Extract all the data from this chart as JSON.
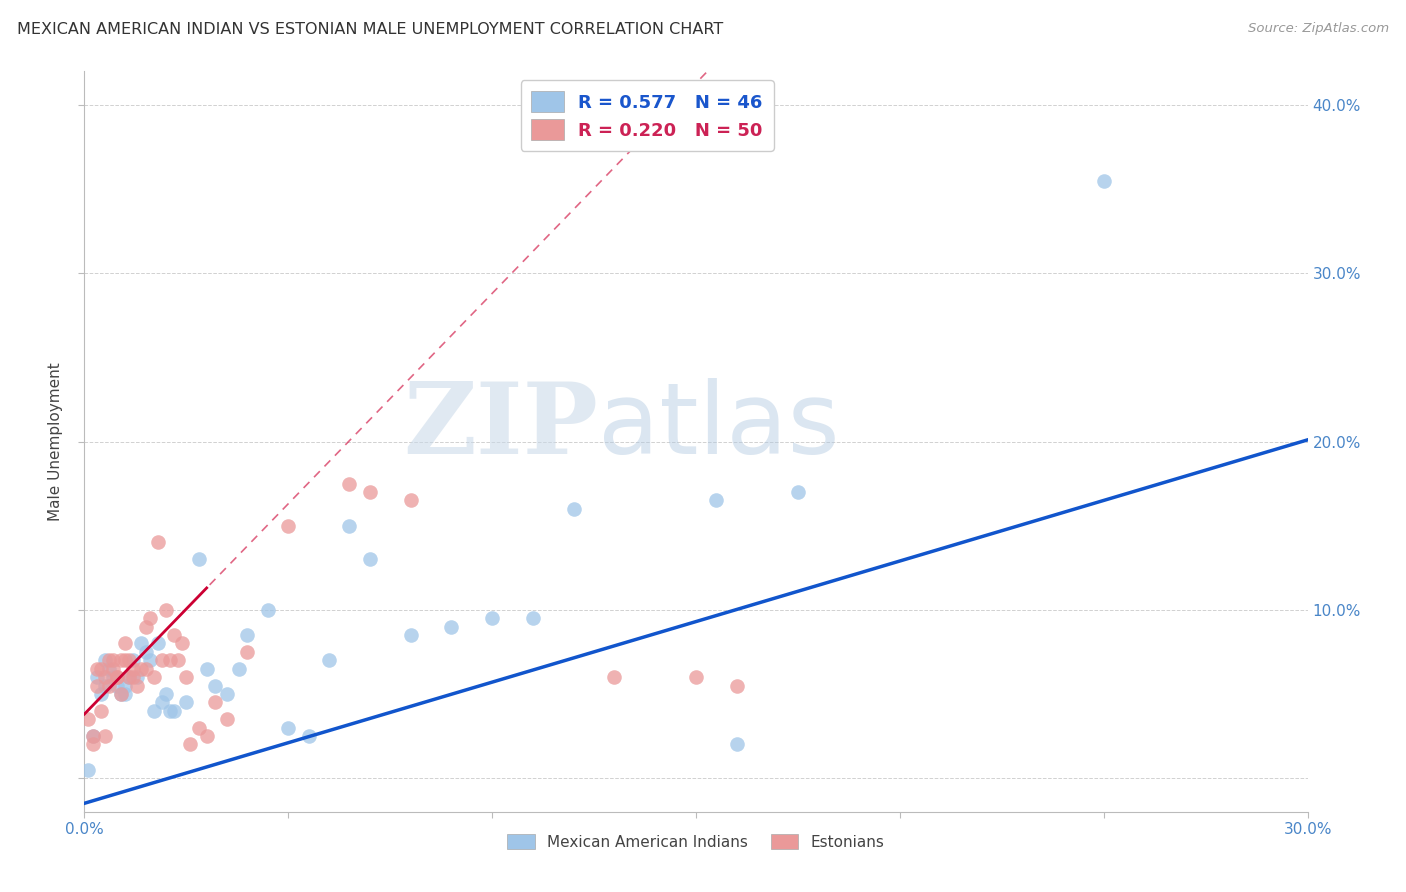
{
  "title": "MEXICAN AMERICAN INDIAN VS ESTONIAN MALE UNEMPLOYMENT CORRELATION CHART",
  "source": "Source: ZipAtlas.com",
  "ylabel": "Male Unemployment",
  "xlim": [
    0.0,
    0.3
  ],
  "ylim": [
    -0.02,
    0.42
  ],
  "xticks": [
    0.0,
    0.05,
    0.1,
    0.15,
    0.2,
    0.25,
    0.3
  ],
  "yticks": [
    0.0,
    0.1,
    0.2,
    0.3,
    0.4
  ],
  "ytick_labels": [
    "",
    "10.0%",
    "20.0%",
    "30.0%",
    "40.0%"
  ],
  "blue_color": "#9fc5e8",
  "pink_color": "#ea9999",
  "blue_line_color": "#1155cc",
  "pink_line_color": "#cc0033",
  "pink_dash_color": "#cc0033",
  "watermark_zip": "ZIP",
  "watermark_atlas": "atlas",
  "legend_blue_label": "R = 0.577   N = 46",
  "legend_pink_label": "R = 0.220   N = 50",
  "legend_bottom_blue": "Mexican American Indians",
  "legend_bottom_pink": "Estonians",
  "blue_x": [
    0.001,
    0.002,
    0.003,
    0.004,
    0.005,
    0.005,
    0.006,
    0.007,
    0.008,
    0.009,
    0.01,
    0.01,
    0.011,
    0.012,
    0.013,
    0.014,
    0.015,
    0.016,
    0.017,
    0.018,
    0.019,
    0.02,
    0.021,
    0.022,
    0.025,
    0.028,
    0.03,
    0.032,
    0.035,
    0.038,
    0.04,
    0.045,
    0.05,
    0.055,
    0.06,
    0.065,
    0.07,
    0.08,
    0.09,
    0.1,
    0.11,
    0.12,
    0.155,
    0.16,
    0.175,
    0.25
  ],
  "blue_y": [
    0.005,
    0.025,
    0.06,
    0.05,
    0.07,
    0.055,
    0.065,
    0.06,
    0.055,
    0.05,
    0.05,
    0.055,
    0.06,
    0.07,
    0.06,
    0.08,
    0.075,
    0.07,
    0.04,
    0.08,
    0.045,
    0.05,
    0.04,
    0.04,
    0.045,
    0.13,
    0.065,
    0.055,
    0.05,
    0.065,
    0.085,
    0.1,
    0.03,
    0.025,
    0.07,
    0.15,
    0.13,
    0.085,
    0.09,
    0.095,
    0.095,
    0.16,
    0.165,
    0.02,
    0.17,
    0.355
  ],
  "pink_x": [
    0.001,
    0.002,
    0.002,
    0.003,
    0.003,
    0.004,
    0.004,
    0.005,
    0.005,
    0.006,
    0.006,
    0.007,
    0.007,
    0.008,
    0.008,
    0.009,
    0.009,
    0.01,
    0.01,
    0.011,
    0.011,
    0.012,
    0.012,
    0.013,
    0.014,
    0.015,
    0.015,
    0.016,
    0.017,
    0.018,
    0.019,
    0.02,
    0.021,
    0.022,
    0.023,
    0.024,
    0.025,
    0.026,
    0.028,
    0.03,
    0.032,
    0.035,
    0.04,
    0.05,
    0.065,
    0.07,
    0.08,
    0.13,
    0.15,
    0.16
  ],
  "pink_y": [
    0.035,
    0.025,
    0.02,
    0.065,
    0.055,
    0.04,
    0.065,
    0.025,
    0.06,
    0.055,
    0.07,
    0.07,
    0.065,
    0.06,
    0.06,
    0.07,
    0.05,
    0.07,
    0.08,
    0.06,
    0.07,
    0.06,
    0.065,
    0.055,
    0.065,
    0.065,
    0.09,
    0.095,
    0.06,
    0.14,
    0.07,
    0.1,
    0.07,
    0.085,
    0.07,
    0.08,
    0.06,
    0.02,
    0.03,
    0.025,
    0.045,
    0.035,
    0.075,
    0.15,
    0.175,
    0.17,
    0.165,
    0.06,
    0.06,
    0.055
  ]
}
